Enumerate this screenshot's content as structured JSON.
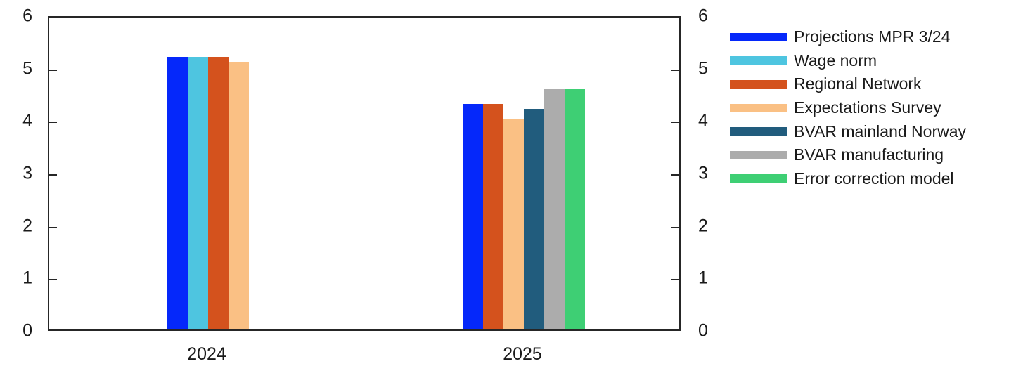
{
  "chart_data": {
    "type": "bar",
    "title": "",
    "categories": [
      "2024",
      "2025"
    ],
    "series": [
      {
        "name": "Projections MPR 3/24",
        "color": "#0528fa",
        "values": [
          5.2,
          4.3
        ]
      },
      {
        "name": "Wage norm",
        "color": "#4ec5e0",
        "values": [
          5.2,
          null
        ]
      },
      {
        "name": "Regional Network",
        "color": "#d4521d",
        "values": [
          5.2,
          4.3
        ]
      },
      {
        "name": "Expectations Survey",
        "color": "#fac084",
        "values": [
          5.1,
          4.0
        ]
      },
      {
        "name": "BVAR mainland Norway",
        "color": "#215c7d",
        "values": [
          null,
          4.2
        ]
      },
      {
        "name": "BVAR manufacturing",
        "color": "#acacac",
        "values": [
          null,
          4.6
        ]
      },
      {
        "name": "Error correction model",
        "color": "#3ecf74",
        "values": [
          null,
          4.6
        ]
      }
    ],
    "xlabel": "",
    "ylabel": "",
    "ylim": [
      0,
      6
    ],
    "yticks": [
      0,
      1,
      2,
      3,
      4,
      5,
      6
    ],
    "y_axis_labels_both_sides": true,
    "grid": false,
    "legend_position": "outside-right",
    "frame_color": "#262626",
    "text_color": "#1a1a1a",
    "background_color": "#ffffff"
  }
}
